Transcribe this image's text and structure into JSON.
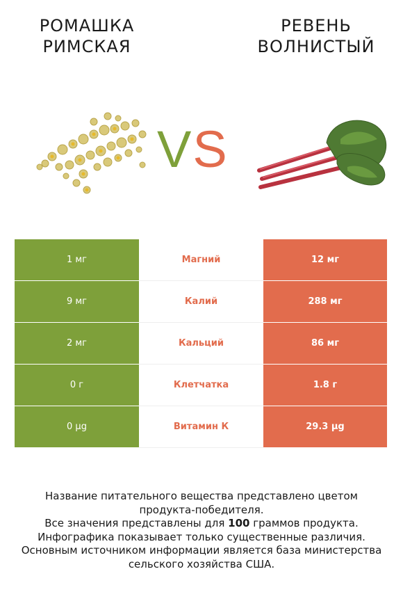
{
  "left_food": {
    "title_line1": "РОМАШКА",
    "title_line2": "РИМСКАЯ"
  },
  "right_food": {
    "title_line1": "РЕВЕНЬ",
    "title_line2": "ВОЛНИСТЫЙ"
  },
  "vs": {
    "v": "V",
    "s": "S"
  },
  "colors": {
    "left": "#7ea03a",
    "right": "#e26c4d"
  },
  "rows": [
    {
      "left": "1 мг",
      "nutrient": "Магний",
      "right": "12 мг"
    },
    {
      "left": "9 мг",
      "nutrient": "Калий",
      "right": "288 мг"
    },
    {
      "left": "2 мг",
      "nutrient": "Кальций",
      "right": "86 мг"
    },
    {
      "left": "0 г",
      "nutrient": "Клетчатка",
      "right": "1.8 г"
    },
    {
      "left": "0 µg",
      "nutrient": "Витамин К",
      "right": "29.3 µg"
    }
  ],
  "footer": {
    "line1": "Название питательного вещества представлено цветом",
    "line2": "продукта-победителя.",
    "line3_pre": "Все значения представлены для ",
    "line3_bold": "100",
    "line3_post": " граммов продукта.",
    "line4": "Инфографика показывает только существенные различия.",
    "line5": "Основным источником информации является база министерства",
    "line6": "сельского хозяйства США."
  }
}
